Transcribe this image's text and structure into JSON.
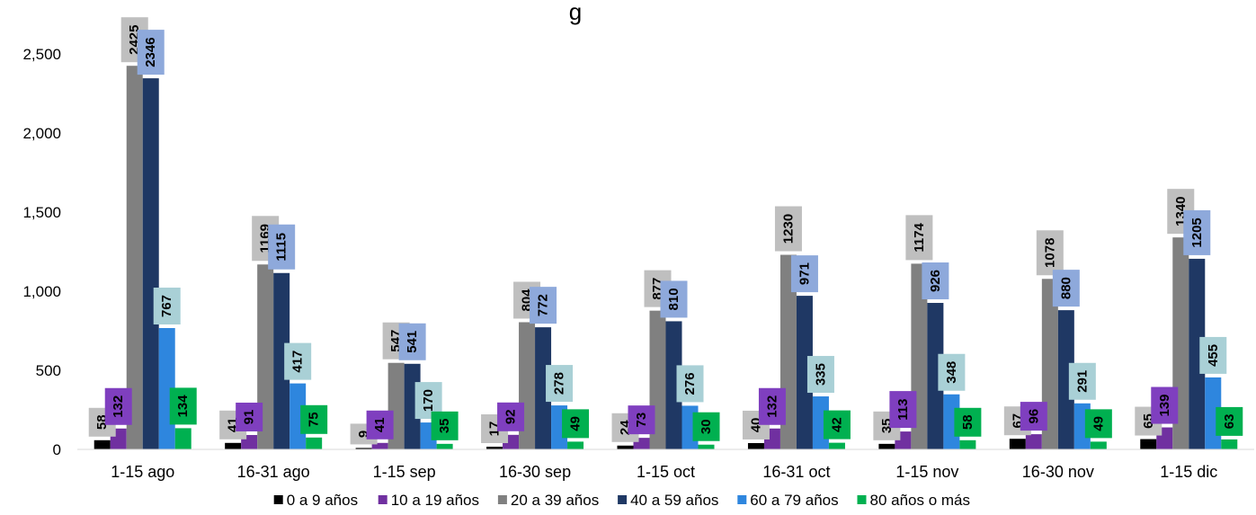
{
  "chart_data": {
    "type": "bar",
    "title": "g",
    "xlabel": "",
    "ylabel": "",
    "ylim": [
      0,
      2600
    ],
    "yticks": [
      0,
      500,
      1000,
      1500,
      2000,
      2500
    ],
    "ytick_labels": [
      "0",
      "500",
      "1,000",
      "1,500",
      "2,000",
      "2,500"
    ],
    "grid": false,
    "legend_position": "bottom",
    "categories": [
      "1-15 ago",
      "16-31 ago",
      "1-15 sep",
      "16-30 sep",
      "1-15 oct",
      "16-31 oct",
      "1-15 nov",
      "16-30 nov",
      "1-15 dic"
    ],
    "series": [
      {
        "name": "0 a 9 años",
        "color": "#000000",
        "label_bg": "#c0c0c0",
        "label_text": "#000000",
        "values": [
          58,
          41,
          9,
          17,
          24,
          40,
          35,
          67,
          65
        ]
      },
      {
        "name": "10 a 19 años",
        "color": "#7030a0",
        "label_bg": "#7f3fbf",
        "label_text": "#ffffff",
        "values": [
          132,
          91,
          41,
          92,
          73,
          132,
          113,
          96,
          139
        ]
      },
      {
        "name": "20 a 39 años",
        "color": "#808080",
        "label_bg": "#bfbfbf",
        "label_text": "#000000",
        "values": [
          2425,
          1169,
          547,
          804,
          877,
          1230,
          1174,
          1078,
          1340
        ]
      },
      {
        "name": "40 a 59 años",
        "color": "#1f3864",
        "label_bg": "#8ea9db",
        "label_text": "#000000",
        "values": [
          2346,
          1115,
          541,
          772,
          810,
          971,
          926,
          880,
          1205
        ]
      },
      {
        "name": "60 a 79 años",
        "color": "#2e86de",
        "label_bg": "#a9d0d6",
        "label_text": "#000000",
        "values": [
          767,
          417,
          170,
          278,
          276,
          335,
          348,
          291,
          455
        ]
      },
      {
        "name": "80 años o más",
        "color": "#00b050",
        "label_bg": "#00b050",
        "label_text": "#000000",
        "values": [
          134,
          75,
          35,
          49,
          30,
          42,
          58,
          49,
          63
        ]
      }
    ]
  }
}
